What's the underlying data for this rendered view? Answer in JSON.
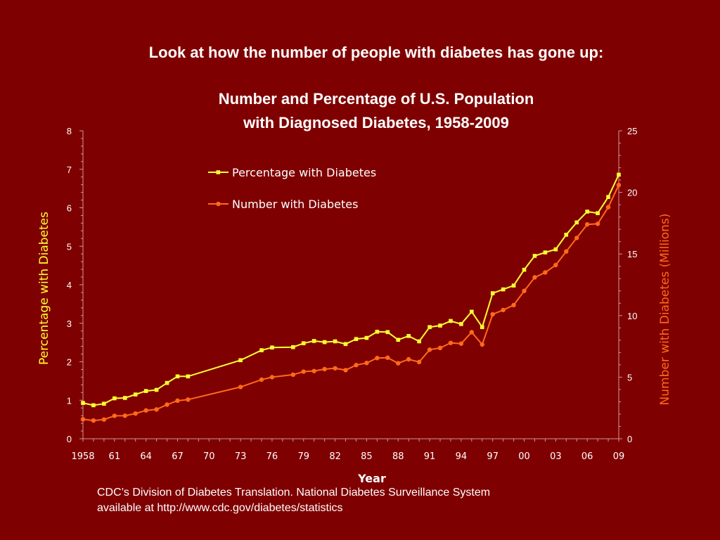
{
  "slide": {
    "heading": "Look at how the number of people with diabetes has gone up:",
    "source_line1": "CDC’s Division of Diabetes Translation. National Diabetes Surveillance System",
    "source_line2": "available at http://www.cdc.gov/diabetes/statistics"
  },
  "colors": {
    "background": "#7f0000",
    "percentage": "#ffff33",
    "number": "#ff6a1a",
    "axis": "#cc9999"
  },
  "chart_data": {
    "type": "line",
    "title_line1": "Number and Percentage of U.S. Population",
    "title_line2": "with Diagnosed Diabetes, 1958-2009",
    "xlabel": "Year",
    "ylabel_left": "Percentage with Diabetes",
    "ylabel_right": "Number with Diabetes (Millions)",
    "xlim": [
      1958,
      2009
    ],
    "ylim_left": [
      0,
      8
    ],
    "ylim_right": [
      0,
      25
    ],
    "yticks_left": [
      "0",
      "1",
      "2",
      "3",
      "4",
      "5",
      "6",
      "7",
      "8"
    ],
    "yticks_right": [
      "0",
      "5",
      "10",
      "15",
      "20",
      "25"
    ],
    "xtick_years": [
      1958,
      1961,
      1964,
      1967,
      1970,
      1973,
      1976,
      1979,
      1982,
      1985,
      1988,
      1991,
      1994,
      1997,
      2000,
      2003,
      2006,
      2009
    ],
    "xtick_labels": [
      "1958",
      "61",
      "64",
      "67",
      "70",
      "73",
      "76",
      "79",
      "82",
      "85",
      "88",
      "91",
      "94",
      "97",
      "00",
      "03",
      "06",
      "09"
    ],
    "legend_position": "top-left",
    "grid": false,
    "x": [
      1958,
      1959,
      1960,
      1961,
      1962,
      1963,
      1964,
      1965,
      1966,
      1967,
      1968,
      1973,
      1975,
      1976,
      1978,
      1979,
      1980,
      1981,
      1982,
      1983,
      1984,
      1985,
      1986,
      1987,
      1988,
      1989,
      1990,
      1991,
      1992,
      1993,
      1994,
      1995,
      1996,
      1997,
      1998,
      1999,
      2000,
      2001,
      2002,
      2003,
      2004,
      2005,
      2006,
      2007,
      2008,
      2009
    ],
    "series": [
      {
        "name": "Percentage with Diabetes",
        "axis": "left",
        "values": [
          0.93,
          0.87,
          0.91,
          1.05,
          1.06,
          1.15,
          1.24,
          1.27,
          1.45,
          1.62,
          1.62,
          2.04,
          2.3,
          2.37,
          2.38,
          2.48,
          2.54,
          2.51,
          2.53,
          2.46,
          2.59,
          2.62,
          2.78,
          2.77,
          2.57,
          2.67,
          2.53,
          2.9,
          2.94,
          3.06,
          2.98,
          3.3,
          2.9,
          3.78,
          3.88,
          3.98,
          4.39,
          4.75,
          4.84,
          4.92,
          5.3,
          5.62,
          5.9,
          5.86,
          6.28,
          6.86
        ]
      },
      {
        "name": "Number with Diabetes",
        "axis": "right",
        "values": [
          1.58,
          1.48,
          1.56,
          1.86,
          1.87,
          2.05,
          2.3,
          2.38,
          2.77,
          3.09,
          3.18,
          4.2,
          4.8,
          5.0,
          5.2,
          5.45,
          5.5,
          5.65,
          5.72,
          5.57,
          5.98,
          6.15,
          6.55,
          6.58,
          6.13,
          6.45,
          6.23,
          7.23,
          7.37,
          7.78,
          7.72,
          8.65,
          7.65,
          10.1,
          10.45,
          10.85,
          12.0,
          13.1,
          13.5,
          14.1,
          15.2,
          16.3,
          17.4,
          17.45,
          18.8,
          20.6
        ]
      }
    ]
  }
}
